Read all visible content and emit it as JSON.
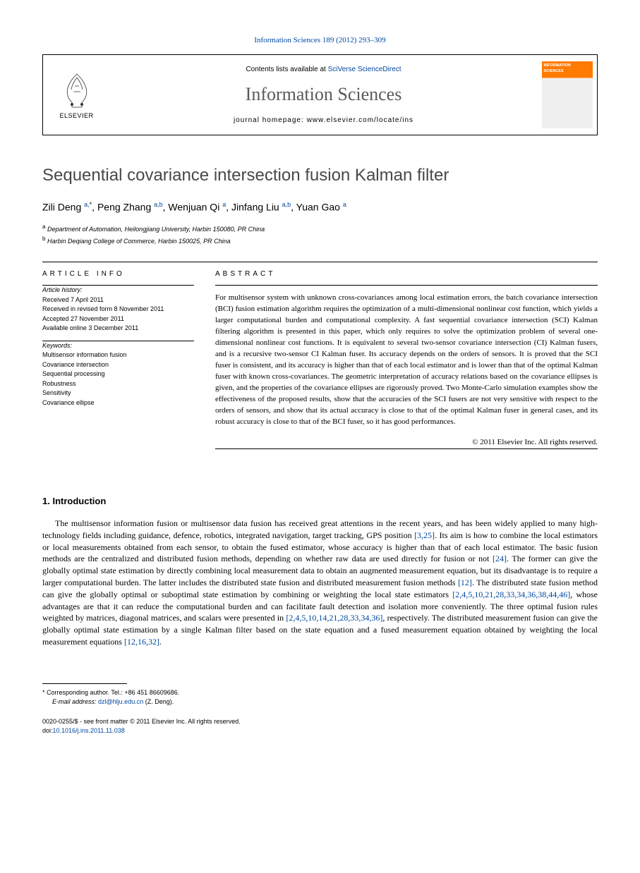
{
  "journal_ref": "Information Sciences 189 (2012) 293–309",
  "header": {
    "publisher_label": "ELSEVIER",
    "contents_prefix": "Contents lists available at ",
    "contents_link": "SciVerse ScienceDirect",
    "journal_name": "Information Sciences",
    "homepage_prefix": "journal homepage: ",
    "homepage_url": "www.elsevier.com/locate/ins",
    "cover_title": "INFORMATION SCIENCES"
  },
  "title": "Sequential covariance intersection fusion Kalman filter",
  "authors_html": "Zili Deng <sup>a,</sup><sup class='ast'>*</sup>, Peng Zhang <sup>a,b</sup>, Wenjuan Qi <sup>a</sup>, Jinfang Liu <sup>a,b</sup>, Yuan Gao <sup>a</sup>",
  "affiliations": [
    {
      "sup": "a",
      "text": "Department of Automation, Heilongjiang University, Harbin 150080, PR China"
    },
    {
      "sup": "b",
      "text": "Harbin Deqiang College of Commerce, Harbin 150025, PR China"
    }
  ],
  "article_info": {
    "heading": "ARTICLE INFO",
    "history_label": "Article history:",
    "history": [
      "Received 7 April 2011",
      "Received in revised form 8 November 2011",
      "Accepted 27 November 2011",
      "Available online 3 December 2011"
    ],
    "keywords_label": "Keywords:",
    "keywords": [
      "Multisensor information fusion",
      "Covariance intersection",
      "Sequential processing",
      "Robustness",
      "Sensitivity",
      "Covariance ellipse"
    ]
  },
  "abstract": {
    "heading": "ABSTRACT",
    "text": "For multisensor system with unknown cross-covariances among local estimation errors, the batch covariance intersection (BCI) fusion estimation algorithm requires the optimization of a multi-dimensional nonlinear cost function, which yields a larger computational burden and computational complexity. A fast sequential covariance intersection (SCI) Kalman filtering algorithm is presented in this paper, which only requires to solve the optimization problem of several one-dimensional nonlinear cost functions. It is equivalent to several two-sensor covariance intersection (CI) Kalman fusers, and is a recursive two-sensor CI Kalman fuser. Its accuracy depends on the orders of sensors. It is proved that the SCI fuser is consistent, and its accuracy is higher than that of each local estimator and is lower than that of the optimal Kalman fuser with known cross-covariances. The geometric interpretation of accuracy relations based on the covariance ellipses is given, and the properties of the covariance ellipses are rigorously proved. Two Monte-Carlo simulation examples show the effectiveness of the proposed results, show that the accuracies of the SCI fusers are not very sensitive with respect to the orders of sensors, and show that its actual accuracy is close to that of the optimal Kalman fuser in general cases, and its robust accuracy is close to that of the BCI fuser, so it has good performances.",
    "copyright": "© 2011 Elsevier Inc. All rights reserved."
  },
  "intro": {
    "heading": "1. Introduction",
    "text": "The multisensor information fusion or multisensor data fusion has received great attentions in the recent years, and has been widely applied to many high-technology fields including guidance, defence, robotics, integrated navigation, target tracking, GPS position [3,25]. Its aim is how to combine the local estimators or local measurements obtained from each sensor, to obtain the fused estimator, whose accuracy is higher than that of each local estimator. The basic fusion methods are the centralized and distributed fusion methods, depending on whether raw data are used directly for fusion or not [24]. The former can give the globally optimal state estimation by directly combining local measurement data to obtain an augmented measurement equation, but its disadvantage is to require a larger computational burden. The latter includes the distributed state fusion and distributed measurement fusion methods [12]. The distributed state fusion method can give the globally optimal or suboptimal state estimation by combining or weighting the local state estimators [2,4,5,10,21,28,33,34,36,38,44,46], whose advantages are that it can reduce the computational burden and can facilitate fault detection and isolation more conveniently. The three optimal fusion rules weighted by matrices, diagonal matrices, and scalars were presented in [2,4,5,10,14,21,28,33,34,36], respectively. The distributed measurement fusion can give the globally optimal state estimation by a single Kalman filter based on the state equation and a fused measurement equation obtained by weighting the local measurement equations [12,16,32].",
    "refs": [
      "[3,25]",
      "[24]",
      "[12]",
      "[2,4,5,10,21,28,33,34,36,38,44,46]",
      "[2,4,5,10,14,21,28,33,34,36]",
      "[12,16,32]"
    ]
  },
  "footer": {
    "corresponding": "* Corresponding author. Tel.: +86 451 86609686.",
    "email_label": "E-mail address: ",
    "email": "dzl@hlju.edu.cn",
    "email_author": " (Z. Deng).",
    "front_matter": "0020-0255/$ - see front matter © 2011 Elsevier Inc. All rights reserved.",
    "doi_label": "doi:",
    "doi": "10.1016/j.ins.2011.11.038"
  },
  "colors": {
    "link": "#0048a0",
    "accent": "#ff7a00",
    "body": "#000000",
    "title_gray": "#484848",
    "journal_gray": "#5a5a5a"
  }
}
